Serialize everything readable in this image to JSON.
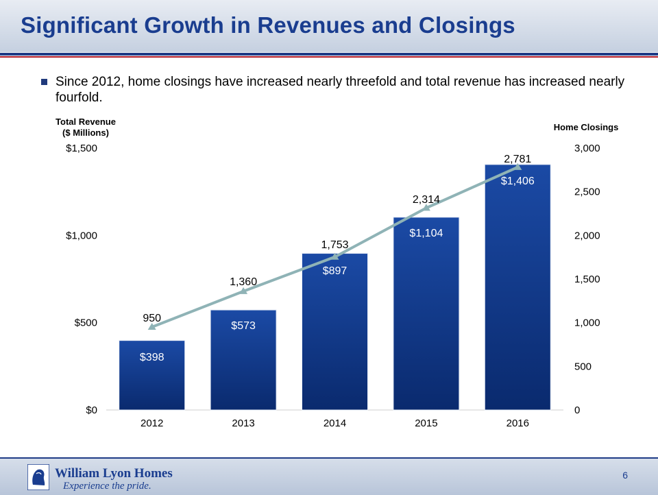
{
  "slide": {
    "title": "Significant Growth in Revenues and Closings",
    "bullet": "Since 2012, home closings have increased nearly threefold and total revenue has increased nearly fourfold.",
    "page_number": "6"
  },
  "footer": {
    "company": "William Lyon Homes",
    "tagline": "Experience the pride."
  },
  "colors": {
    "bar_top": "#1b4aa5",
    "bar_bottom": "#0a2a6e",
    "line": "#8fb3b6",
    "title": "#1a3d8f"
  },
  "chart_data": {
    "type": "bar",
    "categories": [
      "2012",
      "2013",
      "2014",
      "2015",
      "2016"
    ],
    "series": [
      {
        "name": "Total Revenue ($ Millions)",
        "type": "bar",
        "axis": "left",
        "values": [
          398,
          573,
          897,
          1104,
          1406
        ],
        "labels": [
          "$398",
          "$573",
          "$897",
          "$1,104",
          "$1,406"
        ]
      },
      {
        "name": "Home Closings",
        "type": "line",
        "axis": "right",
        "values": [
          950,
          1360,
          1753,
          2314,
          2781
        ],
        "labels": [
          "950",
          "1,360",
          "1,753",
          "2,314",
          "2,781"
        ]
      }
    ],
    "y_left": {
      "title_line1": "Total Revenue",
      "title_line2": "($ Millions)",
      "range": [
        0,
        1500
      ],
      "ticks": [
        "$0",
        "$500",
        "$1,000",
        "$1,500"
      ],
      "tick_values": [
        0,
        500,
        1000,
        1500
      ]
    },
    "y_right": {
      "title": "Home Closings",
      "range": [
        0,
        3000
      ],
      "ticks": [
        "0",
        "500",
        "1,000",
        "1,500",
        "2,000",
        "2,500",
        "3,000"
      ],
      "tick_values": [
        0,
        500,
        1000,
        1500,
        2000,
        2500,
        3000
      ]
    },
    "grid": false
  }
}
